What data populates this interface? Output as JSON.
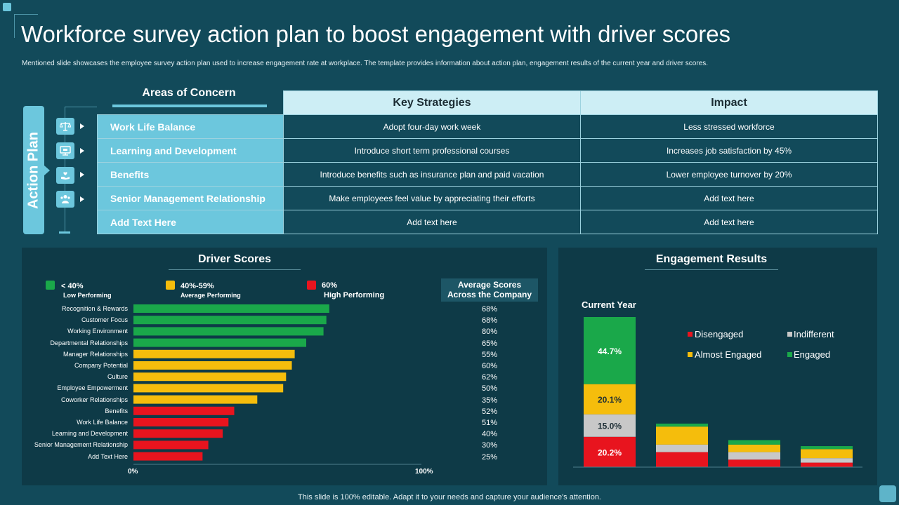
{
  "title": "Workforce survey action plan to boost engagement with driver scores",
  "subtitle": "Mentioned slide showcases the employee survey action plan used to increase engagement rate at workplace. The template provides information about action plan, engagement results of the current year and driver scores.",
  "action_plan_label": "Action Plan",
  "table": {
    "area_header": "Areas of Concern",
    "strategy_header": "Key Strategies",
    "impact_header": "Impact",
    "rows": [
      {
        "area": "Work Life Balance",
        "strategy": "Adopt four-day work week",
        "impact": "Less stressed workforce",
        "icon": "balance-scale-icon"
      },
      {
        "area": "Learning and Development",
        "strategy": "Introduce short term professional courses",
        "impact": "Increases job satisfaction by 45%",
        "icon": "monitor-icon"
      },
      {
        "area": "Benefits",
        "strategy": "Introduce benefits such as insurance plan and paid vacation",
        "impact": "Lower employee turnover by 20%",
        "icon": "hand-heart-icon"
      },
      {
        "area": "Senior Management Relationship",
        "strategy": "Make employees feel value by appreciating their efforts",
        "impact": "Add text here",
        "icon": "people-icon"
      },
      {
        "area": "Add Text Here",
        "strategy": "Add text here",
        "impact": "Add text here",
        "icon": ""
      }
    ]
  },
  "driver_scores": {
    "title": "Driver Scores",
    "legend": [
      {
        "label": "< 40%",
        "sub": "Low Performing",
        "color": "#1aa84a"
      },
      {
        "label": "40%-59%",
        "sub": "Average Performing",
        "color": "#f5bd0c"
      },
      {
        "label": "60%",
        "sub": "High Performing",
        "color": "#e8141e"
      }
    ],
    "avg_header_line1": "Average Scores",
    "avg_header_line2": "Across the Company",
    "axis_min_label": "0%",
    "axis_max_label": "100%"
  },
  "engagement": {
    "title": "Engagement Results",
    "current_year_label": "Current Year",
    "legend": [
      {
        "label": "Disengaged",
        "color": "#e8141e"
      },
      {
        "label": "Indifferent",
        "color": "#c8c8c8"
      },
      {
        "label": "Almost Engaged",
        "color": "#f5bd0c"
      },
      {
        "label": "Engaged",
        "color": "#1aa84a"
      }
    ]
  },
  "chart_data": [
    {
      "type": "bar",
      "orientation": "horizontal",
      "title": "Driver Scores",
      "categories": [
        "Recognition & Rewards",
        "Customer Focus",
        "Working Environment",
        "Departmental Relationships",
        "Manager Relationships",
        "Company Potential",
        "Culture",
        "Employee Empowerment",
        "Coworker Relationships",
        "Benefits",
        "Work Life Balance",
        "Learning and Development",
        "Senior Management Relationship",
        "Add Text Here"
      ],
      "values": [
        68,
        67,
        66,
        60,
        56,
        55,
        53,
        52,
        43,
        35,
        33,
        31,
        26,
        24
      ],
      "bar_colors": [
        "#1aa84a",
        "#1aa84a",
        "#1aa84a",
        "#1aa84a",
        "#f5bd0c",
        "#f5bd0c",
        "#f5bd0c",
        "#f5bd0c",
        "#f5bd0c",
        "#e8141e",
        "#e8141e",
        "#e8141e",
        "#e8141e",
        "#e8141e"
      ],
      "average_scores": [
        "68%",
        "68%",
        "80%",
        "65%",
        "55%",
        "60%",
        "62%",
        "50%",
        "35%",
        "52%",
        "51%",
        "40%",
        "30%",
        "25%"
      ],
      "xlim": [
        0,
        100
      ],
      "xlabel_min": "0%",
      "xlabel_max": "100%"
    },
    {
      "type": "bar",
      "stacked": true,
      "title": "Engagement Results",
      "categories": [
        "Current Year",
        "",
        "",
        ""
      ],
      "series": [
        {
          "name": "Disengaged",
          "values": [
            20.2,
            10,
            5,
            3
          ],
          "labels": [
            "20.2%",
            "",
            "",
            ""
          ],
          "color": "#e8141e"
        },
        {
          "name": "Indifferent",
          "values": [
            15.0,
            5,
            5,
            3
          ],
          "labels": [
            "15.0%",
            "",
            "",
            ""
          ],
          "color": "#c8c8c8"
        },
        {
          "name": "Almost Engaged",
          "values": [
            20.1,
            12,
            5,
            6
          ],
          "labels": [
            "20.1%",
            "",
            "",
            ""
          ],
          "color": "#f5bd0c"
        },
        {
          "name": "Engaged",
          "values": [
            44.7,
            2,
            3,
            2
          ],
          "labels": [
            "44.7%",
            "",
            "",
            ""
          ],
          "color": "#1aa84a"
        }
      ],
      "ylim": [
        0,
        100
      ]
    }
  ]
}
